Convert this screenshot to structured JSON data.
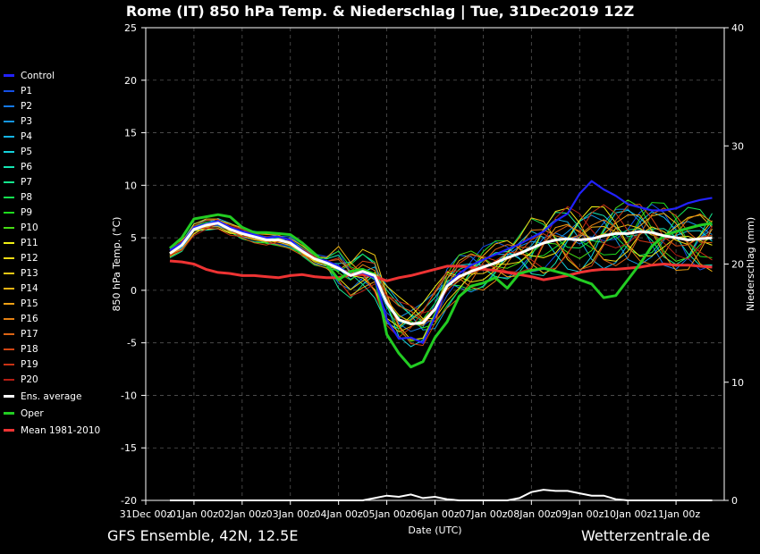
{
  "title": "Rome  (IT)  850 hPa Temp. & Niederschlag | Tue, 31Dec2019 12Z",
  "footer": {
    "model": "GFS Ensemble, 42N, 12.5E",
    "source": "Wetterzentrale.de"
  },
  "chart_data": {
    "type": "line",
    "xlabel": "Date (UTC)",
    "ylabel": "850 hPa Temp. (°C)",
    "y2label": "Niederschlag (mm)",
    "ylim": [
      -20,
      25
    ],
    "y2lim": [
      0,
      40
    ],
    "yticks": [
      25,
      20,
      15,
      10,
      5,
      0,
      -5,
      -10,
      -15,
      -20
    ],
    "y2ticks": [
      40,
      30,
      20,
      10,
      0
    ],
    "xlim": [
      0,
      12
    ],
    "xticks": [
      {
        "x": 0,
        "label": "31Dec 00z"
      },
      {
        "x": 1,
        "label": "01Jan 00z"
      },
      {
        "x": 2,
        "label": "02Jan 00z"
      },
      {
        "x": 3,
        "label": "03Jan 00z"
      },
      {
        "x": 4,
        "label": "04Jan 00z"
      },
      {
        "x": 5,
        "label": "05Jan 00z"
      },
      {
        "x": 6,
        "label": "06Jan 00z"
      },
      {
        "x": 7,
        "label": "07Jan 00z"
      },
      {
        "x": 8,
        "label": "08Jan 00z"
      },
      {
        "x": 9,
        "label": "09Jan 00z"
      },
      {
        "x": 10,
        "label": "10Jan 00z"
      },
      {
        "x": 11,
        "label": "11Jan 00z"
      }
    ],
    "grid": true,
    "legend_position": "left",
    "series": [
      {
        "name": "Control",
        "color": "#2222ff",
        "width": 2.2,
        "legend_only": false,
        "axis": "temp"
      },
      {
        "name": "P1",
        "color": "#1450e6",
        "width": 1,
        "axis": "temp"
      },
      {
        "name": "P2",
        "color": "#1478e6",
        "width": 1,
        "axis": "temp"
      },
      {
        "name": "P3",
        "color": "#1496e6",
        "width": 1,
        "axis": "temp"
      },
      {
        "name": "P4",
        "color": "#14b4e6",
        "width": 1,
        "axis": "temp"
      },
      {
        "name": "P5",
        "color": "#14d2dc",
        "width": 1,
        "axis": "temp"
      },
      {
        "name": "P6",
        "color": "#14e6b4",
        "width": 1,
        "axis": "temp"
      },
      {
        "name": "P7",
        "color": "#14e68c",
        "width": 1,
        "axis": "temp"
      },
      {
        "name": "P8",
        "color": "#14e650",
        "width": 1,
        "axis": "temp"
      },
      {
        "name": "P9",
        "color": "#1edc1e",
        "width": 1,
        "axis": "temp"
      },
      {
        "name": "P10",
        "color": "#46dc14",
        "width": 1,
        "axis": "temp"
      },
      {
        "name": "P11",
        "color": "#f0f014",
        "width": 1,
        "axis": "temp"
      },
      {
        "name": "P12",
        "color": "#f0dc14",
        "width": 1,
        "axis": "temp"
      },
      {
        "name": "P13",
        "color": "#f0c814",
        "width": 1,
        "axis": "temp"
      },
      {
        "name": "P14",
        "color": "#f0b414",
        "width": 1,
        "axis": "temp"
      },
      {
        "name": "P15",
        "color": "#f0a014",
        "width": 1,
        "axis": "temp"
      },
      {
        "name": "P16",
        "color": "#e68214",
        "width": 1,
        "axis": "temp"
      },
      {
        "name": "P17",
        "color": "#dc6414",
        "width": 1,
        "axis": "temp"
      },
      {
        "name": "P18",
        "color": "#d24614",
        "width": 1,
        "axis": "temp"
      },
      {
        "name": "P19",
        "color": "#c83214",
        "width": 1,
        "axis": "temp"
      },
      {
        "name": "P20",
        "color": "#b41e14",
        "width": 1,
        "axis": "temp"
      },
      {
        "name": "Ens. average",
        "color": "#ffffff",
        "width": 3,
        "axis": "temp"
      },
      {
        "name": "Oper",
        "color": "#22cc22",
        "width": 3,
        "axis": "temp"
      },
      {
        "name": "Mean 1981-2010",
        "color": "#ee3333",
        "width": 3,
        "axis": "temp"
      }
    ],
    "x": [
      0.5,
      0.75,
      1.0,
      1.25,
      1.5,
      1.75,
      2.0,
      2.25,
      2.5,
      2.75,
      3.0,
      3.25,
      3.5,
      3.75,
      4.0,
      4.25,
      4.5,
      4.75,
      5.0,
      5.25,
      5.5,
      5.75,
      6.0,
      6.25,
      6.5,
      6.75,
      7.0,
      7.25,
      7.5,
      7.75,
      8.0,
      8.25,
      8.5,
      8.75,
      9.0,
      9.25,
      9.5,
      9.75,
      10.0,
      10.25,
      10.5,
      10.75,
      11.0,
      11.25,
      11.5,
      11.75
    ],
    "lines": {
      "Control": [
        3.8,
        4.5,
        6.0,
        6.3,
        6.6,
        6.0,
        5.6,
        5.3,
        5.0,
        5.1,
        4.8,
        3.8,
        3.0,
        2.8,
        2.3,
        1.4,
        1.7,
        1.2,
        -2.8,
        -4.6,
        -4.5,
        -5.0,
        -2.5,
        0.5,
        1.6,
        2.4,
        2.9,
        3.4,
        3.9,
        4.4,
        5.0,
        5.6,
        6.6,
        7.3,
        9.2,
        10.4,
        9.6,
        9.0,
        8.2,
        7.9,
        7.6,
        7.6,
        7.8,
        8.3,
        8.6,
        8.8
      ],
      "Ens. average": [
        3.5,
        4.3,
        5.8,
        6.2,
        6.4,
        5.8,
        5.4,
        5.1,
        4.8,
        4.8,
        4.5,
        3.7,
        3.0,
        2.6,
        2.1,
        1.4,
        1.8,
        1.4,
        -1.2,
        -2.8,
        -3.2,
        -3.1,
        -1.8,
        0.4,
        1.3,
        1.8,
        2.2,
        2.6,
        3.1,
        3.5,
        4.0,
        4.5,
        4.8,
        4.9,
        4.8,
        4.9,
        5.2,
        5.4,
        5.4,
        5.6,
        5.5,
        5.2,
        5.0,
        4.8,
        4.9,
        5.0
      ],
      "Oper": [
        4.0,
        5.0,
        6.8,
        7.0,
        7.2,
        7.0,
        6.0,
        5.5,
        5.5,
        5.4,
        5.3,
        4.5,
        3.5,
        2.5,
        1.0,
        1.8,
        2.0,
        1.5,
        -4.2,
        -6.0,
        -7.3,
        -6.8,
        -4.5,
        -3.0,
        -0.6,
        0.4,
        0.7,
        1.2,
        0.2,
        1.6,
        1.9,
        2.1,
        1.8,
        1.5,
        1.0,
        0.6,
        -0.7,
        -0.5,
        1.0,
        2.5,
        4.2,
        5.2,
        5.6,
        5.9,
        6.2,
        6.4
      ],
      "Mean 1981-2010": [
        2.8,
        2.7,
        2.5,
        2.0,
        1.7,
        1.6,
        1.4,
        1.4,
        1.3,
        1.2,
        1.4,
        1.5,
        1.3,
        1.2,
        1.2,
        1.5,
        1.5,
        1.3,
        0.9,
        1.2,
        1.4,
        1.7,
        2.0,
        2.3,
        2.3,
        2.2,
        2.0,
        1.9,
        1.7,
        1.5,
        1.3,
        1.0,
        1.2,
        1.4,
        1.7,
        1.9,
        2.0,
        2.0,
        2.1,
        2.2,
        2.4,
        2.5,
        2.4,
        2.4,
        2.3,
        2.2
      ]
    },
    "precip_x": [
      0.5,
      0.75,
      1.0,
      1.25,
      1.5,
      1.75,
      2.0,
      2.25,
      2.5,
      2.75,
      3.0,
      3.25,
      3.5,
      3.75,
      4.0,
      4.25,
      4.5,
      4.75,
      5.0,
      5.25,
      5.5,
      5.75,
      6.0,
      6.25,
      6.5,
      6.75,
      7.0,
      7.25,
      7.5,
      7.75,
      8.0,
      8.25,
      8.5,
      8.75,
      9.0,
      9.25,
      9.5,
      9.75,
      10.0,
      10.25,
      10.5,
      10.75,
      11.0,
      11.25,
      11.5,
      11.75
    ],
    "precip_ens_average": [
      0,
      0,
      0,
      0,
      0,
      0,
      0,
      0,
      0,
      0,
      0,
      0,
      0,
      0,
      0,
      0,
      0,
      0.2,
      0.4,
      0.3,
      0.5,
      0.2,
      0.3,
      0.1,
      0,
      0,
      0,
      0,
      0,
      0.2,
      0.7,
      0.9,
      0.8,
      0.8,
      0.6,
      0.4,
      0.4,
      0.1,
      0,
      0,
      0,
      0,
      0,
      0,
      0,
      0
    ]
  }
}
